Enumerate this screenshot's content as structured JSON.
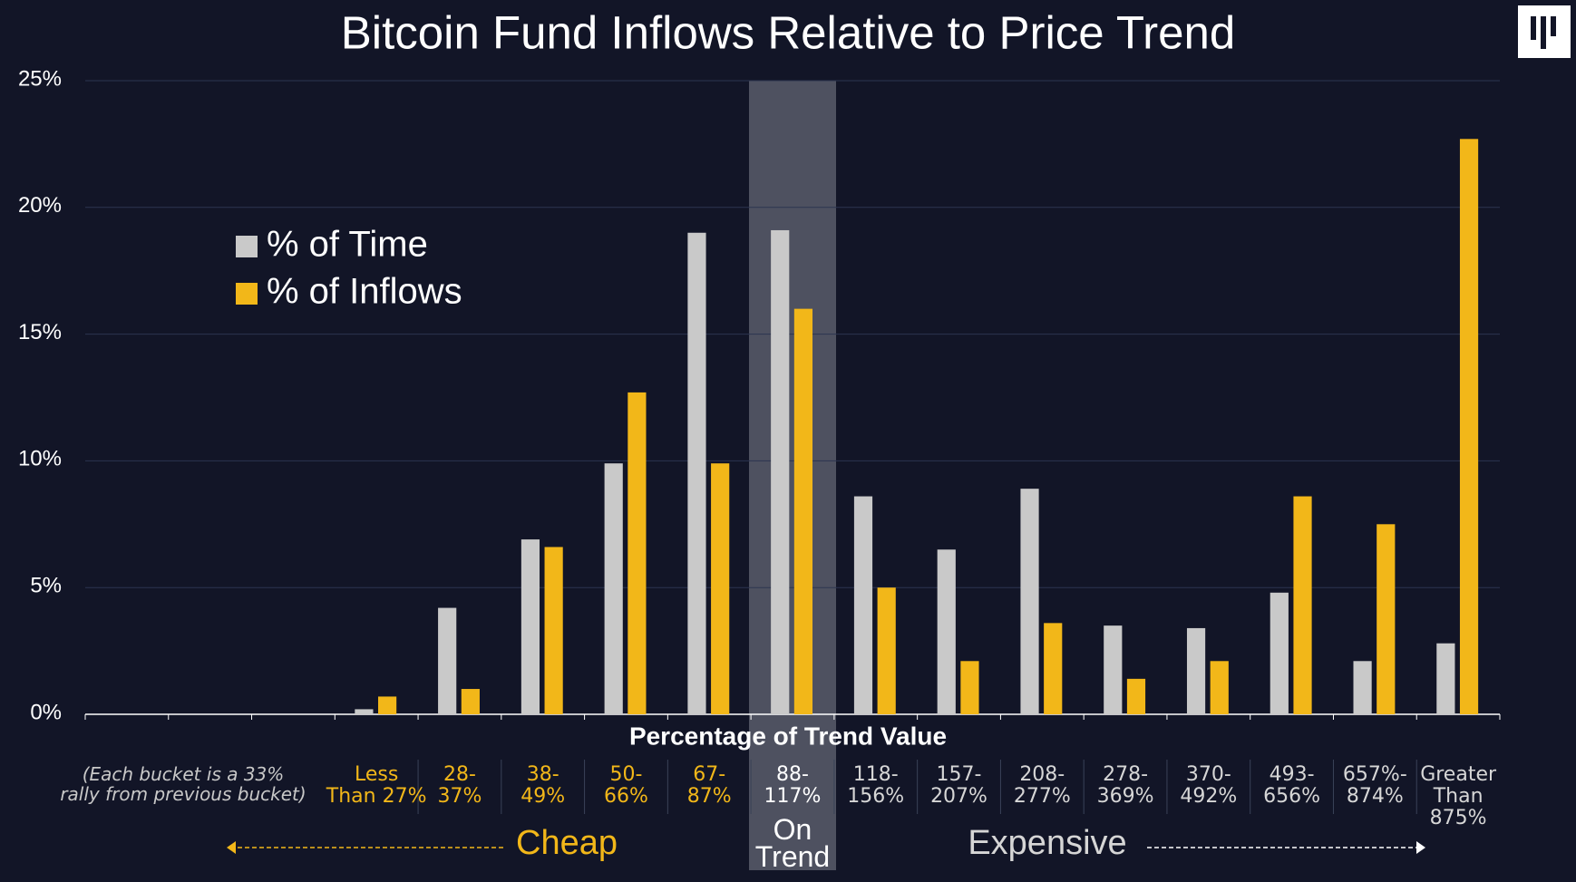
{
  "chart_data": {
    "type": "bar",
    "title": "Bitcoin Fund Inflows Relative to Price Trend",
    "x_label": "Percentage of Trend Value",
    "note": "(Each bucket is a 33%\nrally from previous bucket)",
    "categories": [
      null,
      null,
      null,
      "Less\nThan 27%",
      "28-\n37%",
      "38-\n49%",
      "50-\n66%",
      "67-\n87%",
      "88-\n117%",
      "118-\n156%",
      "157-\n207%",
      "208-\n277%",
      "278-\n369%",
      "370-\n492%",
      "493-\n656%",
      "657%-\n874%",
      "Greater\nThan 875%"
    ],
    "category_colors": [
      null,
      null,
      null,
      "#f2b719",
      "#f2b719",
      "#f2b719",
      "#f2b719",
      "#f2b719",
      "#ffffff",
      "#d6d6d6",
      "#d6d6d6",
      "#d6d6d6",
      "#d6d6d6",
      "#d6d6d6",
      "#d6d6d6",
      "#d6d6d6",
      "#d6d6d6"
    ],
    "series": [
      {
        "name": "% of Time",
        "color": "#c9c9c9",
        "values": [
          null,
          null,
          null,
          0.2,
          4.2,
          6.9,
          9.9,
          19.0,
          19.1,
          8.6,
          6.5,
          8.9,
          3.5,
          3.4,
          4.8,
          2.1,
          2.8
        ]
      },
      {
        "name": "% of Inflows",
        "color": "#f2b719",
        "values": [
          null,
          null,
          null,
          0.7,
          1.0,
          6.6,
          12.7,
          9.9,
          16.0,
          5.0,
          2.1,
          3.6,
          1.4,
          2.1,
          8.6,
          7.5,
          22.7
        ]
      }
    ],
    "zones": [
      {
        "label": "Cheap",
        "color": "#f2b719"
      },
      {
        "label": "On\nTrend",
        "color": "#ffffff"
      },
      {
        "label": "Expensive",
        "color": "#d6d6d6"
      }
    ],
    "ylim": [
      0,
      25
    ],
    "yticks": [
      {
        "value": 0,
        "label": "0%"
      },
      {
        "value": 5,
        "label": "5%"
      },
      {
        "value": 10,
        "label": "10%"
      },
      {
        "value": 15,
        "label": "15%"
      },
      {
        "value": 20,
        "label": "20%"
      },
      {
        "value": 25,
        "label": "25%"
      }
    ],
    "grid": true
  }
}
